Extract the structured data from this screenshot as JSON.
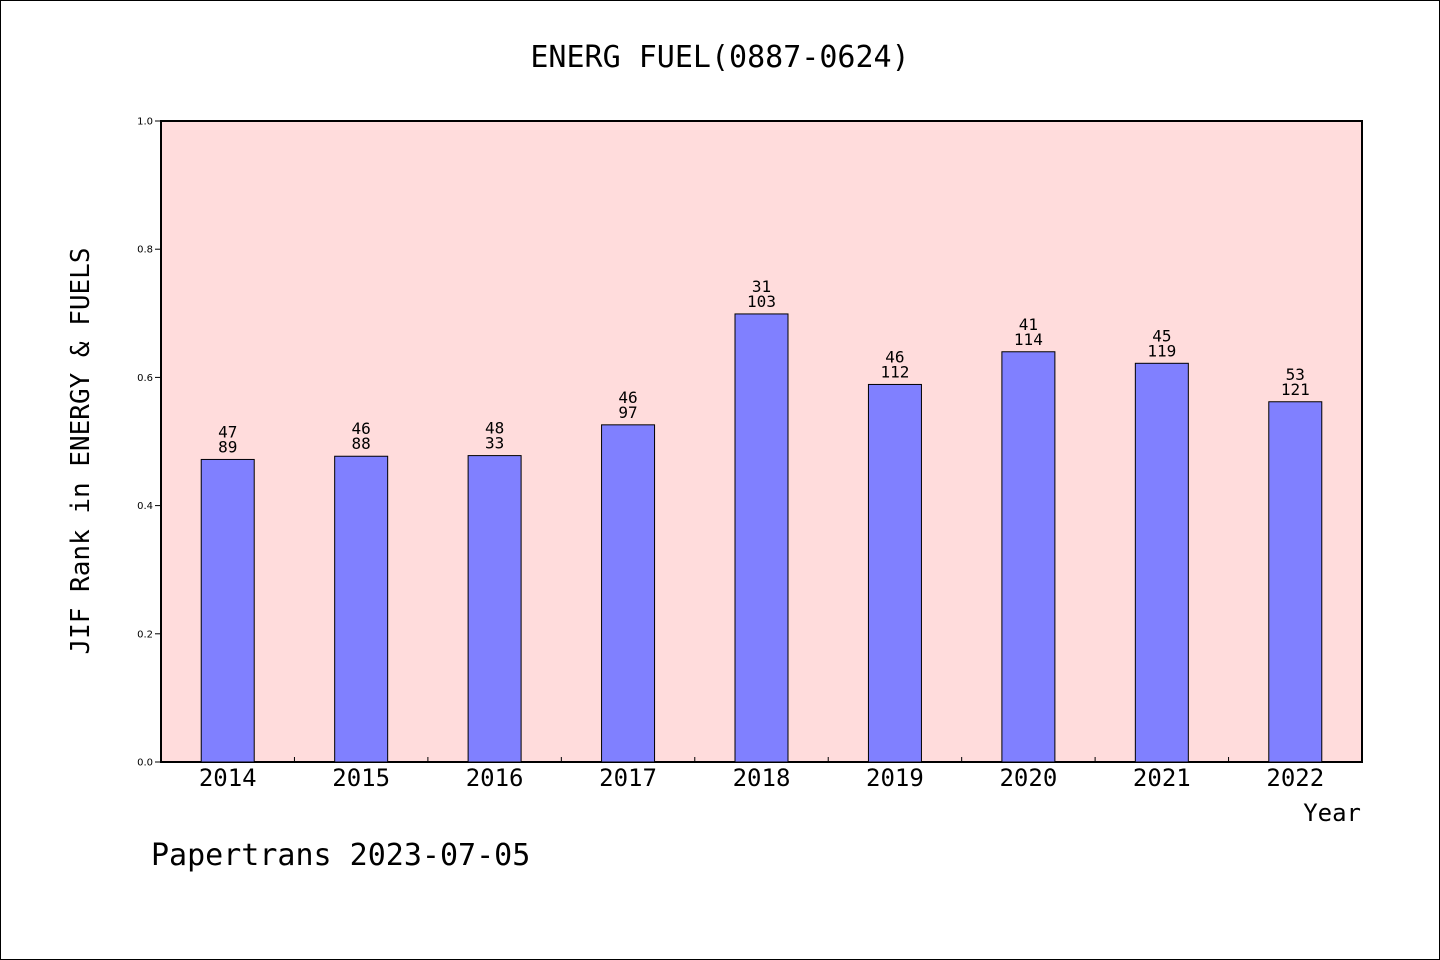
{
  "chart_data": {
    "type": "bar",
    "title": "ENERG FUEL(0887-0624)",
    "xlabel": "Year",
    "ylabel": "JIF Rank in ENERGY & FUELS",
    "ylim": [
      0,
      1.0
    ],
    "yticks": [
      "0.0",
      "0.2",
      "0.4",
      "0.6",
      "0.8",
      "1.0"
    ],
    "grid": false,
    "background_color": "#ffdcdc",
    "bar_color": "#8080ff",
    "categories": [
      "2014",
      "2015",
      "2016",
      "2017",
      "2018",
      "2019",
      "2020",
      "2021",
      "2022"
    ],
    "values": [
      0.472,
      0.477,
      0.478,
      0.526,
      0.699,
      0.589,
      0.64,
      0.622,
      0.562
    ],
    "label_top": [
      "47",
      "46",
      "48",
      "46",
      "31",
      "46",
      "41",
      "45",
      "53"
    ],
    "label_bottom": [
      "89",
      "88",
      "33",
      "97",
      "103",
      "112",
      "114",
      "119",
      "121"
    ]
  },
  "footer": "Papertrans 2023-07-05"
}
